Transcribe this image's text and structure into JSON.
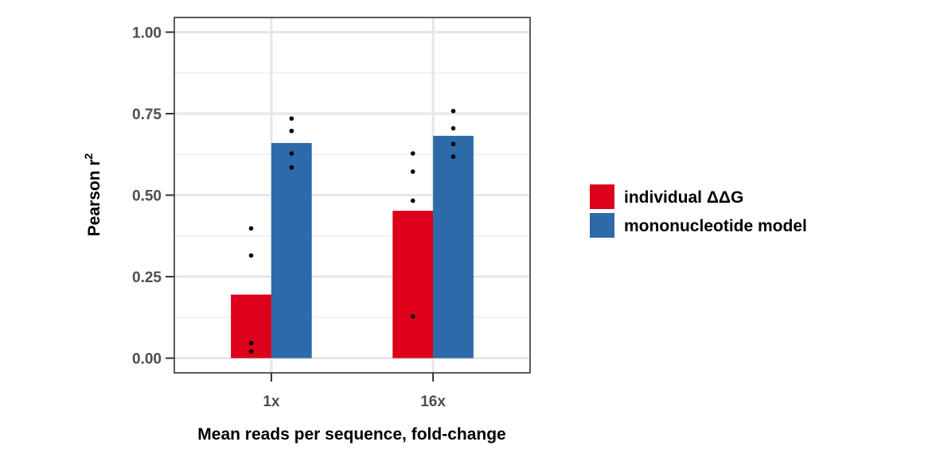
{
  "chart_data": {
    "type": "bar",
    "xlabel": "Mean reads per sequence, fold-change",
    "ylabel": "Pearson r",
    "ylabel_superscript": "2",
    "ylim": [
      -0.045,
      1.045
    ],
    "yticks": [
      0.0,
      0.25,
      0.5,
      0.75,
      1.0
    ],
    "ytick_labels": [
      "0.00",
      "0.25",
      "0.50",
      "0.75",
      "1.00"
    ],
    "categories": [
      "1x",
      "16x"
    ],
    "grid": true,
    "legend_position": "right",
    "series": [
      {
        "name": "individual ΔΔG",
        "color": "#dc001b",
        "values": [
          0.195,
          0.452
        ],
        "points": [
          [
            0.02,
            0.046,
            0.315,
            0.398
          ],
          [
            0.128,
            0.483,
            0.572,
            0.628
          ]
        ]
      },
      {
        "name": "mononucleotide model",
        "color": "#2c6aa9",
        "values": [
          0.66,
          0.682
        ],
        "points": [
          [
            0.585,
            0.628,
            0.697,
            0.735
          ],
          [
            0.618,
            0.657,
            0.705,
            0.758
          ]
        ]
      }
    ]
  }
}
